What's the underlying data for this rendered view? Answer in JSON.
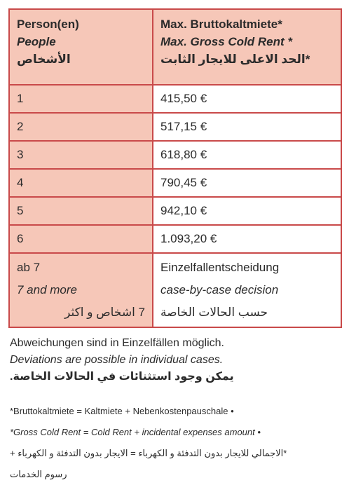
{
  "table": {
    "header": {
      "col1": [
        "Person(en)",
        "People",
        "الأشخاص"
      ],
      "col2": [
        "Max. Bruttokaltmiete*",
        "Max. Gross Cold Rent *",
        "*الحد الاعلى للايجار الثابت"
      ]
    },
    "rows": [
      {
        "persons": "1",
        "rent": "415,50 €"
      },
      {
        "persons": "2",
        "rent": "517,15 €"
      },
      {
        "persons": "3",
        "rent": "618,80 €"
      },
      {
        "persons": "4",
        "rent": "790,45 €"
      },
      {
        "persons": "5",
        "rent": "942,10 €"
      },
      {
        "persons": "6",
        "rent": "1.093,20 €"
      }
    ],
    "last_row": {
      "persons": [
        "ab 7",
        "7 and more",
        "7 اشخاص و اكثر"
      ],
      "rent": [
        "Einzelfallentscheidung",
        "case-by-case decision",
        "حسب الحالات الخاصة"
      ]
    }
  },
  "notes": {
    "de": "Abweichungen sind in Einzelfällen möglich.",
    "en": "Deviations are possible in individual cases.",
    "ar": "يمكن وجود استثنائات في الحالات الخاصة."
  },
  "footnotes": {
    "de": "*Bruttokaltmiete = Kaltmiete + Nebenkostenpauschale •",
    "en": "*Gross Cold Rent = Cold Rent + incidental expenses amount •",
    "ar1": "*الاجمالي للايجار بدون التدفئة و الكهرباء = الايجار بدون التدفئة و الكهرباء +",
    "ar2": "رسوم الخدمات"
  }
}
